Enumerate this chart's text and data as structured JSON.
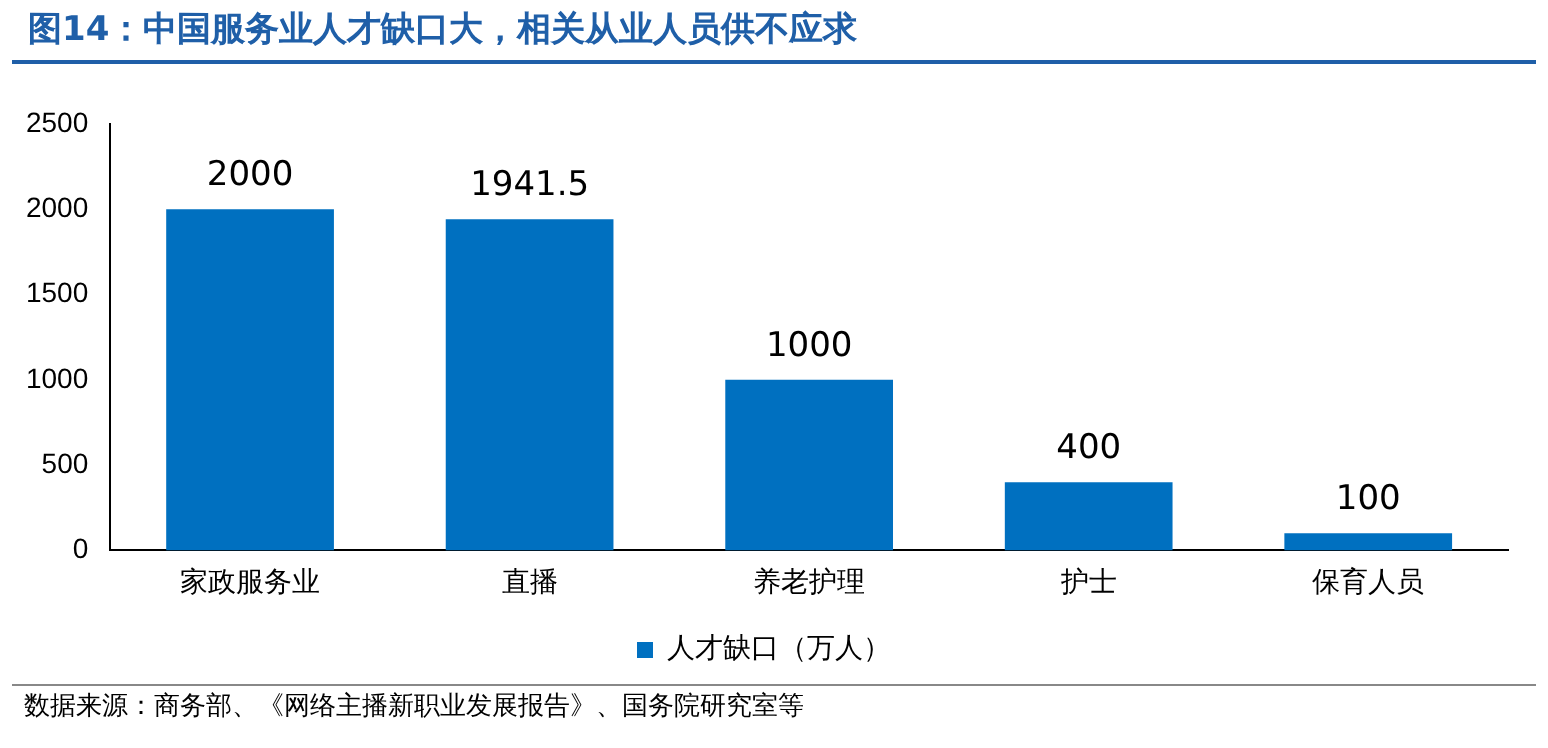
{
  "chart_data": {
    "type": "bar",
    "title": "图14：中国服务业人才缺口大，相关从业人员供不应求",
    "categories": [
      "家政服务业",
      "直播",
      "养老护理",
      "护士",
      "保育人员"
    ],
    "series": [
      {
        "name": "人才缺口（万人）",
        "color": "#0070c0",
        "values": [
          2000,
          1941.5,
          1000,
          400,
          100
        ]
      }
    ],
    "ylim": [
      0,
      2500
    ],
    "yticks": [
      0,
      500,
      1000,
      1500,
      2000,
      2500
    ],
    "grid": false,
    "legend": "bottom",
    "data_labels": true,
    "annotations": [
      "数据来源：商务部、《网络主播新职业发展报告》、国务院研究室等"
    ]
  }
}
